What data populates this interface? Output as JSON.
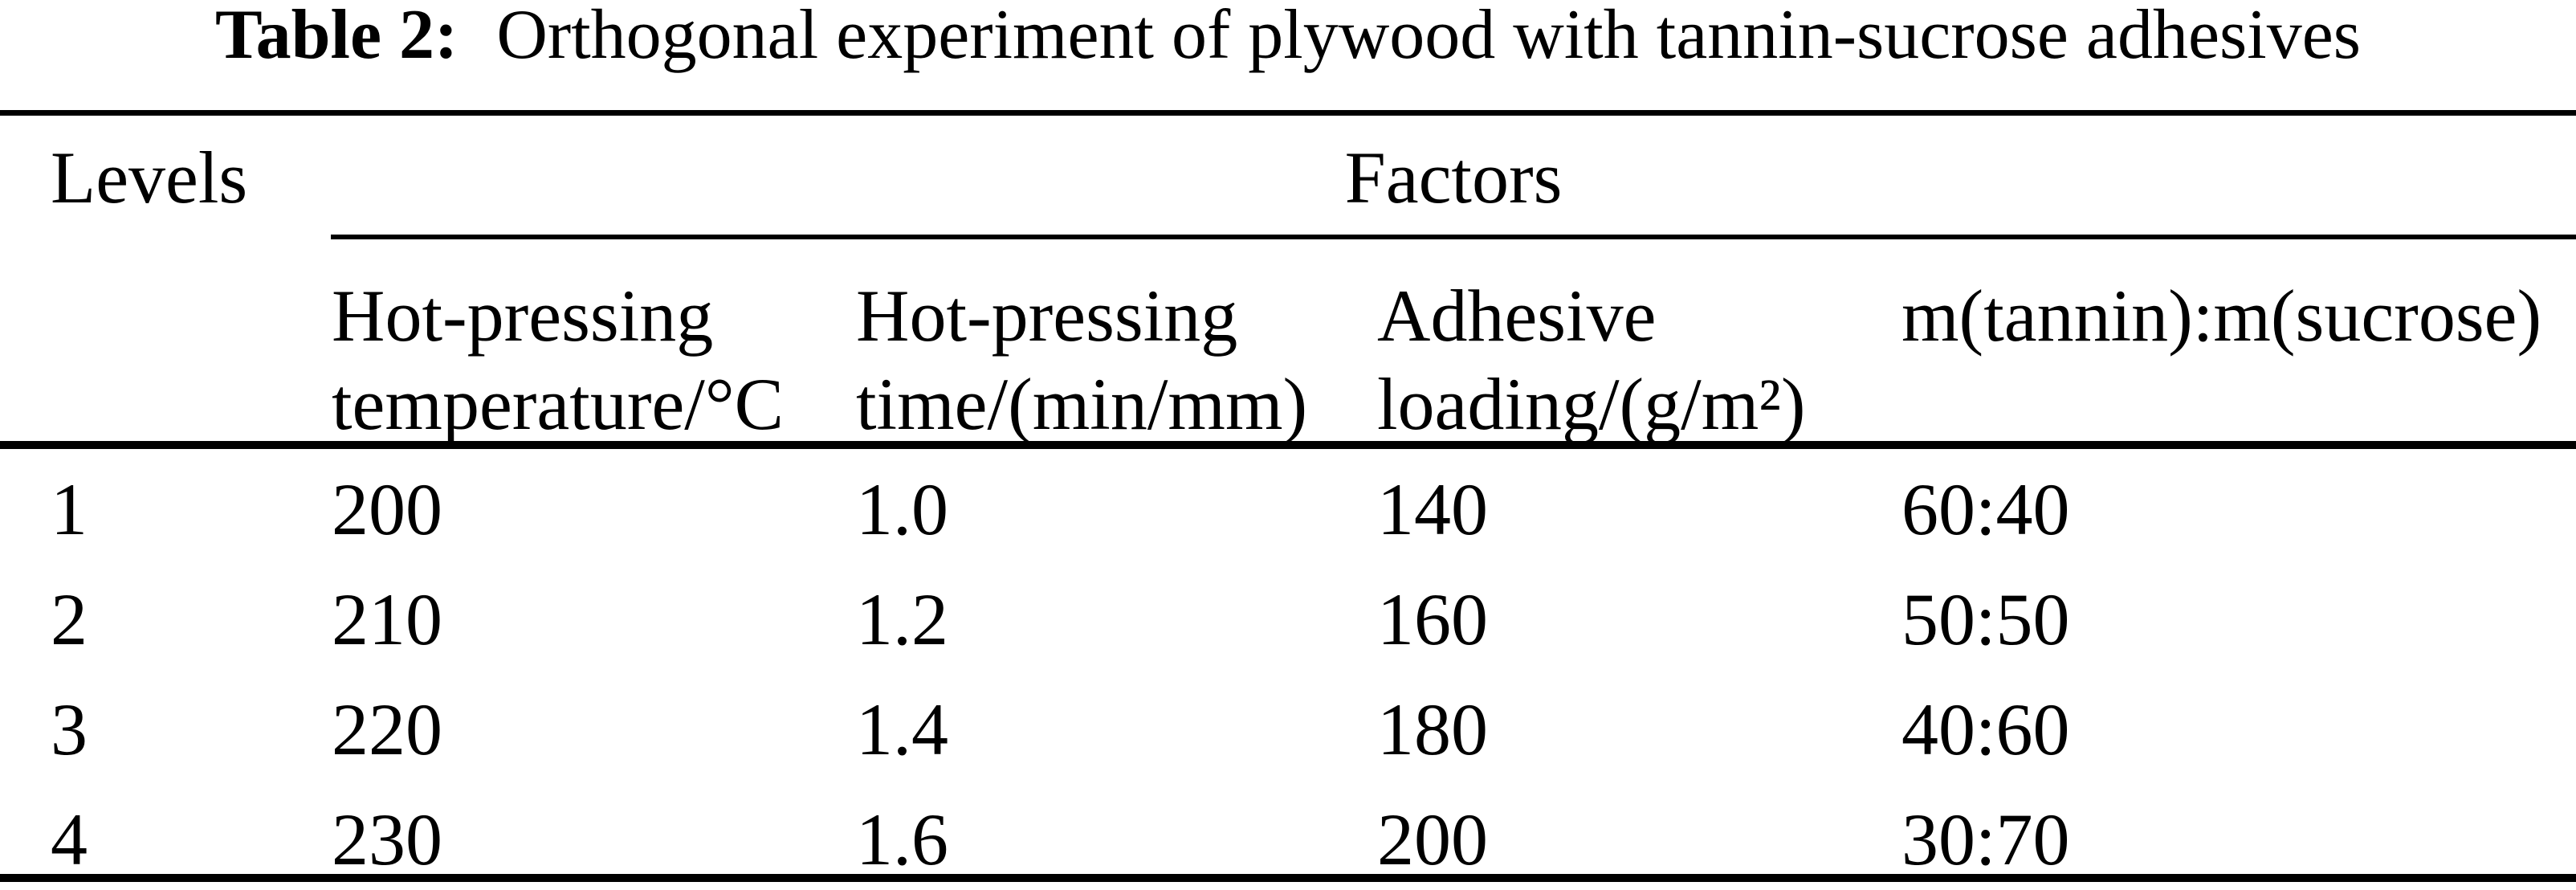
{
  "caption": {
    "label": "Table 2:",
    "text": "Orthogonal experiment of plywood with tannin-sucrose adhesives"
  },
  "colors": {
    "text": "#000000",
    "background": "#ffffff",
    "rule": "#000000"
  },
  "table": {
    "stub_header": "Levels",
    "group_header": "Factors",
    "columns": [
      {
        "line1": "Hot-pressing",
        "line2": "temperature/°C"
      },
      {
        "line1": "Hot-pressing",
        "line2": "time/(min/mm)"
      },
      {
        "line1": "Adhesive",
        "line2": "loading/(g/m²)"
      },
      {
        "line1": "m(tannin):m(sucrose)"
      }
    ],
    "rows": [
      {
        "level": "1",
        "temperature": "200",
        "time": "1.0",
        "loading": "140",
        "ratio": "60:40"
      },
      {
        "level": "2",
        "temperature": "210",
        "time": "1.2",
        "loading": "160",
        "ratio": "50:50"
      },
      {
        "level": "3",
        "temperature": "220",
        "time": "1.4",
        "loading": "180",
        "ratio": "40:60"
      },
      {
        "level": "4",
        "temperature": "230",
        "time": "1.6",
        "loading": "200",
        "ratio": "30:70"
      }
    ]
  }
}
